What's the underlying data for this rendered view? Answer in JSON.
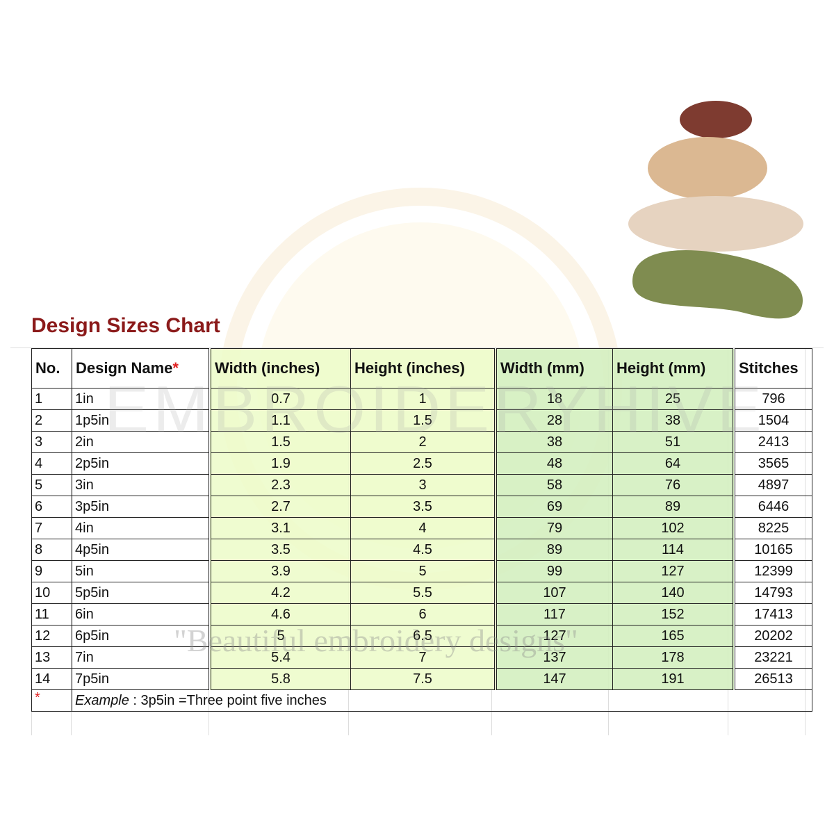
{
  "title": "Design Sizes Chart",
  "watermark": {
    "brand": "EMBROIDERYHIVE",
    "tagline": "\"Beautiful embroidery designs\""
  },
  "colors": {
    "title": "#8b1a1a",
    "inches_fill": "#ecfcc8",
    "mm_fill": "#d4f0c0",
    "asterisk": "#e02020"
  },
  "table": {
    "headers": [
      "No.",
      "Design Name",
      "Width (inches)",
      "Height (inches)",
      "Width (mm)",
      "Height (mm)",
      "Stitches"
    ],
    "name_marker": "*",
    "rows": [
      [
        "1",
        "1in",
        "0.7",
        "1",
        "18",
        "25",
        "796"
      ],
      [
        "2",
        "1p5in",
        "1.1",
        "1.5",
        "28",
        "38",
        "1504"
      ],
      [
        "3",
        "2in",
        "1.5",
        "2",
        "38",
        "51",
        "2413"
      ],
      [
        "4",
        "2p5in",
        "1.9",
        "2.5",
        "48",
        "64",
        "3565"
      ],
      [
        "5",
        "3in",
        "2.3",
        "3",
        "58",
        "76",
        "4897"
      ],
      [
        "6",
        "3p5in",
        "2.7",
        "3.5",
        "69",
        "89",
        "6446"
      ],
      [
        "7",
        "4in",
        "3.1",
        "4",
        "79",
        "102",
        "8225"
      ],
      [
        "8",
        "4p5in",
        "3.5",
        "4.5",
        "89",
        "114",
        "10165"
      ],
      [
        "9",
        "5in",
        "3.9",
        "5",
        "99",
        "127",
        "12399"
      ],
      [
        "10",
        "5p5in",
        "4.2",
        "5.5",
        "107",
        "140",
        "14793"
      ],
      [
        "11",
        "6in",
        "4.6",
        "6",
        "117",
        "152",
        "17413"
      ],
      [
        "12",
        "6p5in",
        "5",
        "6.5",
        "127",
        "165",
        "20202"
      ],
      [
        "13",
        "7in",
        "5.4",
        "7",
        "137",
        "178",
        "23221"
      ],
      [
        "14",
        "7p5in",
        "5.8",
        "7.5",
        "147",
        "191",
        "26513"
      ]
    ],
    "footnote": {
      "marker": "*",
      "label": "Example",
      "text": " : 3p5in =Three point five inches"
    }
  }
}
